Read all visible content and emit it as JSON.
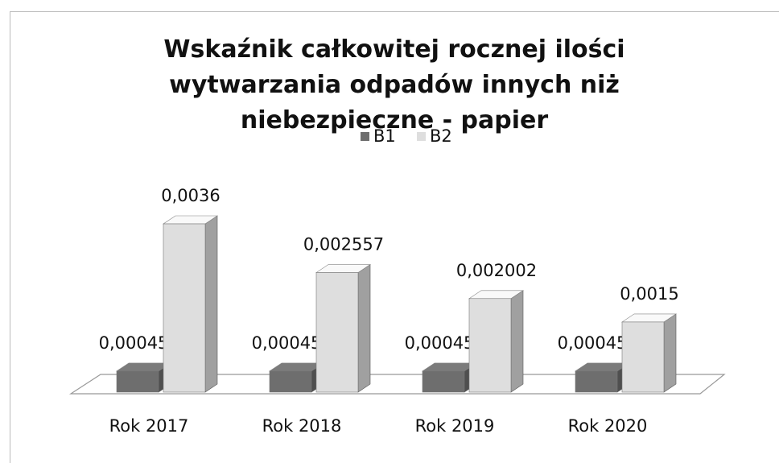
{
  "chart_data": {
    "type": "bar3d",
    "title": "Wskaźnik całkowitej rocznej ilości wytwarzania odpadów innych niż niebezpieczne  - papier",
    "categories": [
      "Rok 2017",
      "Rok 2018",
      "Rok 2019",
      "Rok 2020"
    ],
    "series": [
      {
        "name": "B1",
        "color": "#6e6e6e",
        "values": [
          0.00045,
          0.00045,
          0.00045,
          0.00045
        ],
        "value_labels": [
          "0,00045",
          "0,00045",
          "0,00045",
          "0,00045"
        ]
      },
      {
        "name": "B2",
        "color": "#dedede",
        "values": [
          0.0036,
          0.002557,
          0.002002,
          0.0015
        ],
        "value_labels": [
          "0,0036",
          "0,002557",
          "0,002002",
          "0,0015"
        ]
      }
    ],
    "legend": "top"
  }
}
